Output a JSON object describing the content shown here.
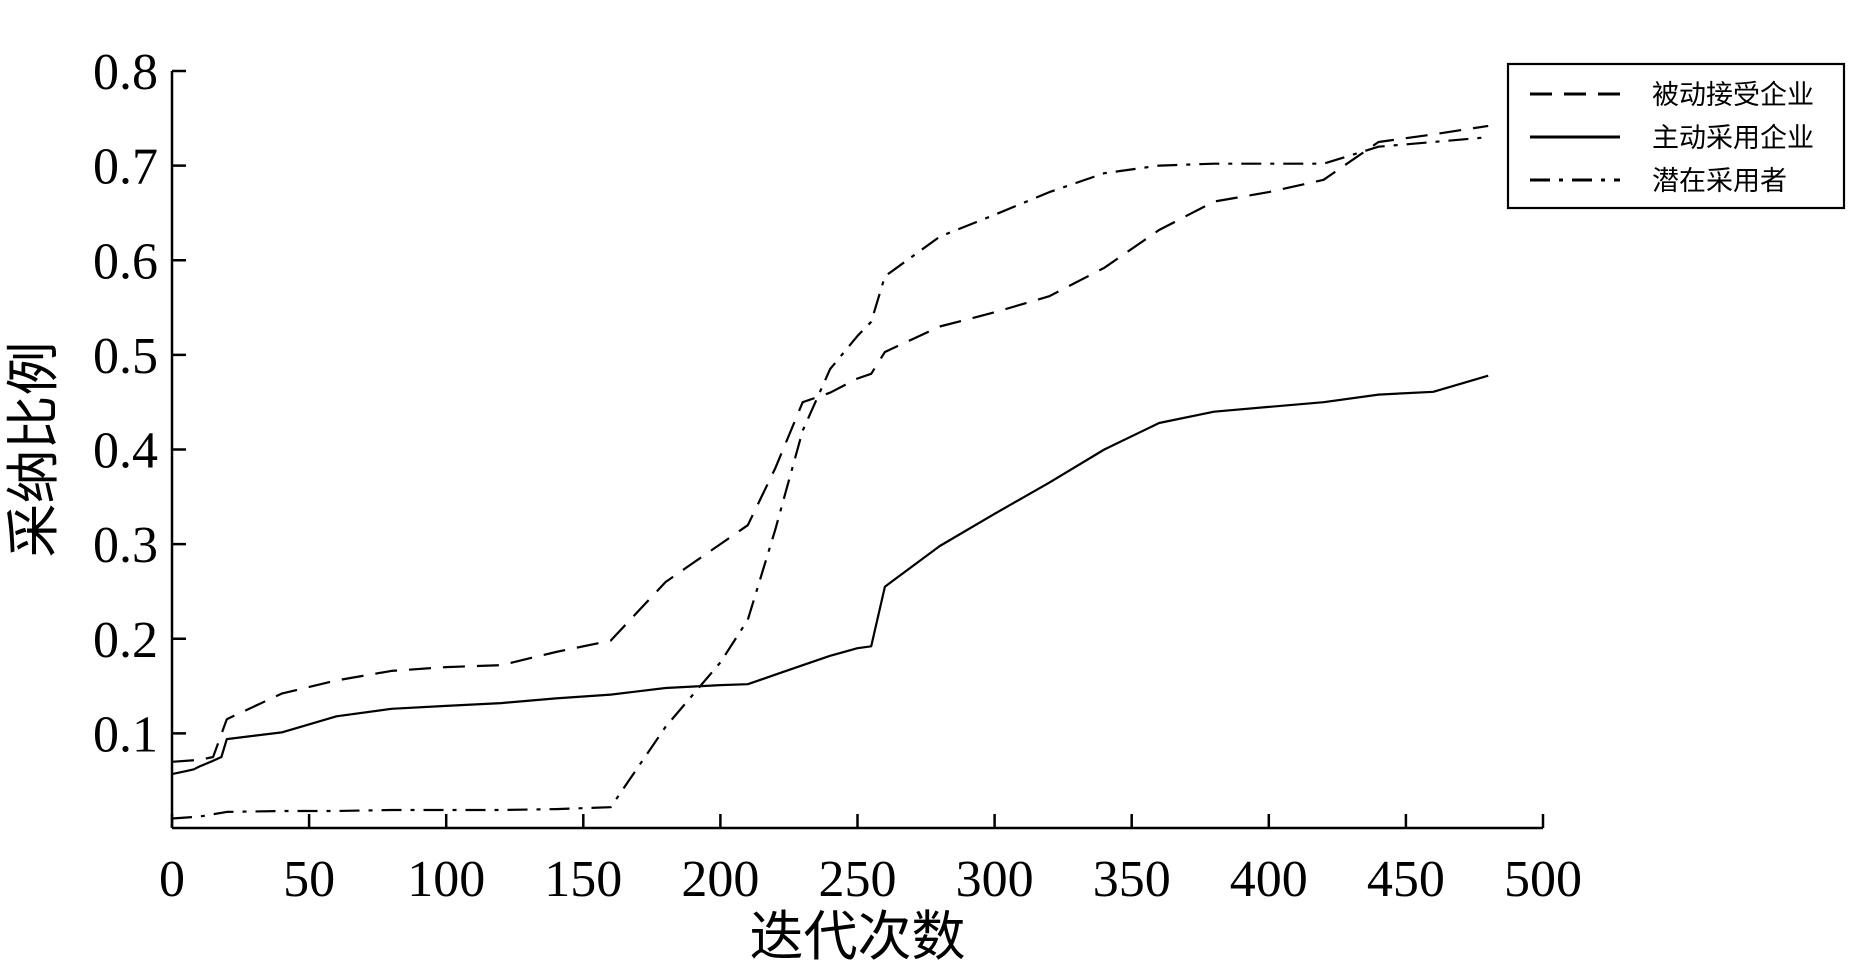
{
  "chart_data": {
    "type": "line",
    "title": "",
    "xlabel": "迭代次数",
    "ylabel": "采纳比例",
    "xlim": [
      0,
      500
    ],
    "ylim": [
      0,
      0.8
    ],
    "xticks": [
      0,
      50,
      100,
      150,
      200,
      250,
      300,
      350,
      400,
      450,
      500
    ],
    "yticks": [
      0.1,
      0.2,
      0.3,
      0.4,
      0.5,
      0.6,
      0.7,
      0.8
    ],
    "xtick_labels": [
      "0",
      "50",
      "100",
      "150",
      "200",
      "250",
      "300",
      "350",
      "400",
      "450",
      "500"
    ],
    "ytick_labels": [
      "0.1",
      "0.2",
      "0.3",
      "0.4",
      "0.5",
      "0.6",
      "0.7",
      "0.8"
    ],
    "grid": false,
    "legend_position": "top-right",
    "series": [
      {
        "name": "被动接受企业",
        "style": "dashed",
        "x": [
          0,
          10,
          15,
          20,
          40,
          60,
          80,
          100,
          120,
          140,
          160,
          180,
          190,
          200,
          210,
          220,
          230,
          240,
          250,
          255,
          260,
          280,
          300,
          320,
          340,
          360,
          380,
          400,
          420,
          440,
          460,
          480
        ],
        "y": [
          0.07,
          0.072,
          0.075,
          0.115,
          0.142,
          0.156,
          0.166,
          0.17,
          0.172,
          0.186,
          0.198,
          0.26,
          0.28,
          0.3,
          0.32,
          0.38,
          0.45,
          0.46,
          0.475,
          0.48,
          0.503,
          0.53,
          0.545,
          0.562,
          0.592,
          0.632,
          0.662,
          0.672,
          0.685,
          0.725,
          0.733,
          0.742
        ]
      },
      {
        "name": "主动采用企业",
        "style": "solid",
        "x": [
          0,
          5,
          8,
          10,
          15,
          18,
          20,
          40,
          60,
          80,
          100,
          120,
          140,
          160,
          180,
          200,
          210,
          220,
          230,
          240,
          250,
          255,
          260,
          280,
          300,
          320,
          340,
          360,
          380,
          400,
          420,
          440,
          460,
          480
        ],
        "y": [
          0.057,
          0.06,
          0.062,
          0.065,
          0.071,
          0.075,
          0.094,
          0.101,
          0.118,
          0.126,
          0.129,
          0.132,
          0.137,
          0.141,
          0.148,
          0.151,
          0.152,
          0.162,
          0.172,
          0.182,
          0.19,
          0.192,
          0.255,
          0.298,
          0.332,
          0.365,
          0.4,
          0.428,
          0.44,
          0.445,
          0.45,
          0.458,
          0.461,
          0.478
        ]
      },
      {
        "name": "潜在采用者",
        "style": "dashdot",
        "x": [
          0,
          10,
          20,
          40,
          60,
          80,
          100,
          120,
          140,
          160,
          180,
          200,
          210,
          220,
          230,
          240,
          250,
          255,
          260,
          280,
          300,
          320,
          340,
          360,
          380,
          400,
          420,
          440,
          460,
          480
        ],
        "y": [
          0.01,
          0.012,
          0.017,
          0.018,
          0.018,
          0.019,
          0.019,
          0.019,
          0.02,
          0.022,
          0.107,
          0.175,
          0.22,
          0.315,
          0.42,
          0.485,
          0.52,
          0.535,
          0.583,
          0.625,
          0.648,
          0.672,
          0.692,
          0.7,
          0.702,
          0.702,
          0.702,
          0.72,
          0.725,
          0.73
        ]
      }
    ]
  }
}
